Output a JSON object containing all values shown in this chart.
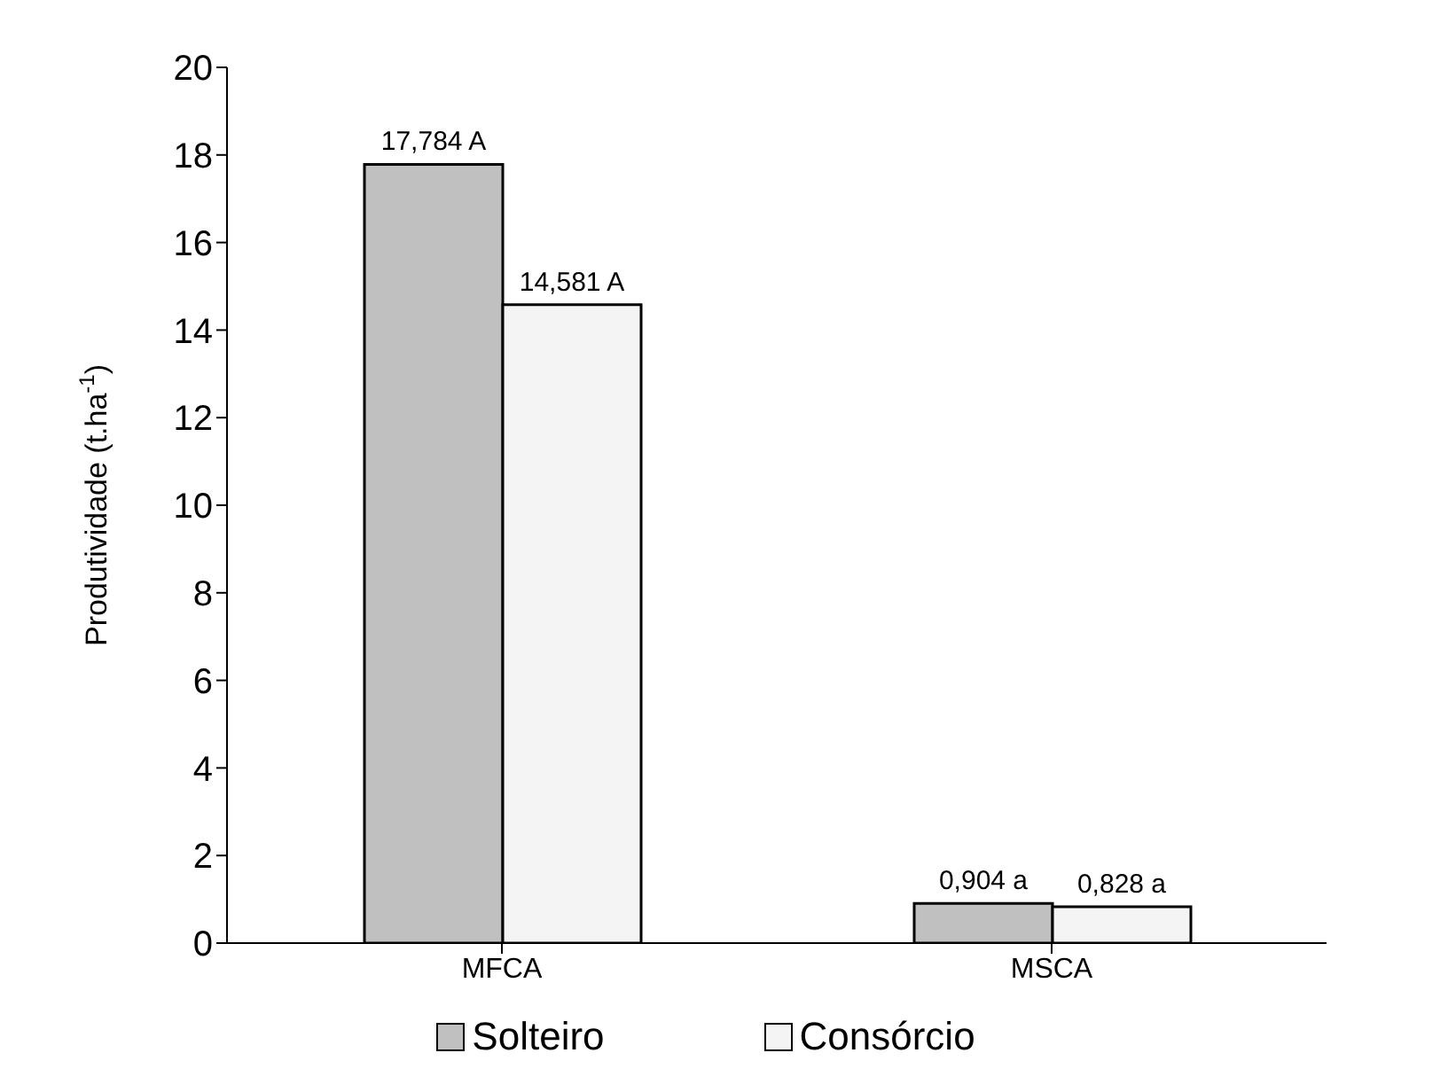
{
  "chart_data": {
    "type": "bar",
    "ylabel": "Produtividade (t.ha$^{-1}$)",
    "categories": [
      "MFCA",
      "MSCA"
    ],
    "series": [
      {
        "name": "Solteiro",
        "color": "#c0c0c0",
        "values": [
          17.784,
          0.904
        ],
        "value_labels": [
          "17,784 A",
          "0,904 a"
        ]
      },
      {
        "name": "Consórcio",
        "color": "#f4f4f4",
        "values": [
          14.581,
          0.828
        ],
        "value_labels": [
          "14,581 A",
          "0,828 a"
        ]
      }
    ],
    "ylim": [
      0,
      20
    ],
    "yticks": [
      0,
      2,
      4,
      6,
      8,
      10,
      12,
      14,
      16,
      18,
      20
    ],
    "legend": "bottom"
  }
}
